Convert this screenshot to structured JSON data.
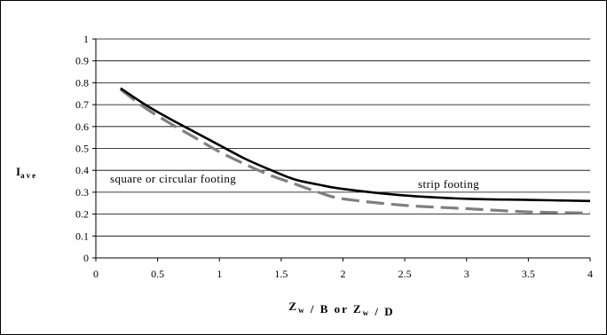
{
  "chart_data": {
    "type": "line",
    "title": "",
    "xlabel": "Z_w / B or Z_w / D",
    "ylabel": "I_ave",
    "xlim": [
      0,
      4
    ],
    "ylim": [
      0,
      1
    ],
    "x_ticks": [
      "0",
      "0.5",
      "1",
      "1.5",
      "2",
      "2.5",
      "3",
      "3.5",
      "4"
    ],
    "y_ticks": [
      "0",
      "0.1",
      "0.2",
      "0.3",
      "0.4",
      "0.5",
      "0.6",
      "0.7",
      "0.8",
      "0.9",
      "1"
    ],
    "grid": "horizontal",
    "series": [
      {
        "style": "solid-black",
        "color": "#000000",
        "x": [
          0.2,
          0.4,
          0.6,
          0.8,
          1.0,
          1.2,
          1.4,
          1.6,
          1.8,
          2.0,
          2.5,
          3.0,
          3.5,
          4.0
        ],
        "y": [
          0.775,
          0.7,
          0.635,
          0.575,
          0.515,
          0.455,
          0.405,
          0.36,
          0.335,
          0.315,
          0.285,
          0.27,
          0.265,
          0.26
        ]
      },
      {
        "style": "dashed-gray",
        "color": "#7f7f7f",
        "x": [
          0.2,
          0.4,
          0.6,
          0.8,
          1.0,
          1.2,
          1.4,
          1.6,
          1.8,
          2.0,
          2.5,
          3.0,
          3.5,
          4.0
        ],
        "y": [
          0.77,
          0.685,
          0.615,
          0.55,
          0.485,
          0.43,
          0.38,
          0.34,
          0.3,
          0.27,
          0.24,
          0.225,
          0.21,
          0.205
        ]
      }
    ],
    "annotations": {
      "strip": "strip footing",
      "square": "square or circular footing"
    }
  }
}
